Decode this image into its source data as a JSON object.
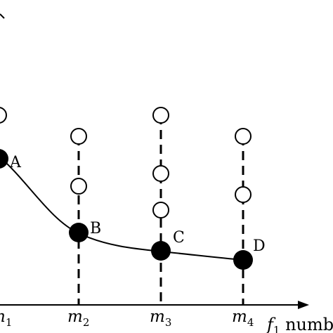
{
  "diagram": {
    "x_axis": {
      "title_var": "f",
      "title_sub": "1",
      "title_text": " numb",
      "ticks": [
        {
          "var": "m",
          "sub": "1"
        },
        {
          "var": "m",
          "sub": "2"
        },
        {
          "var": "m",
          "sub": "3"
        },
        {
          "var": "m",
          "sub": "4"
        }
      ]
    },
    "points": [
      {
        "label": "A"
      },
      {
        "label": "B"
      },
      {
        "label": "C"
      },
      {
        "label": "D"
      }
    ],
    "colors": {
      "stroke": "#000000",
      "filled": "#000000",
      "hollow": "#ffffff"
    }
  }
}
